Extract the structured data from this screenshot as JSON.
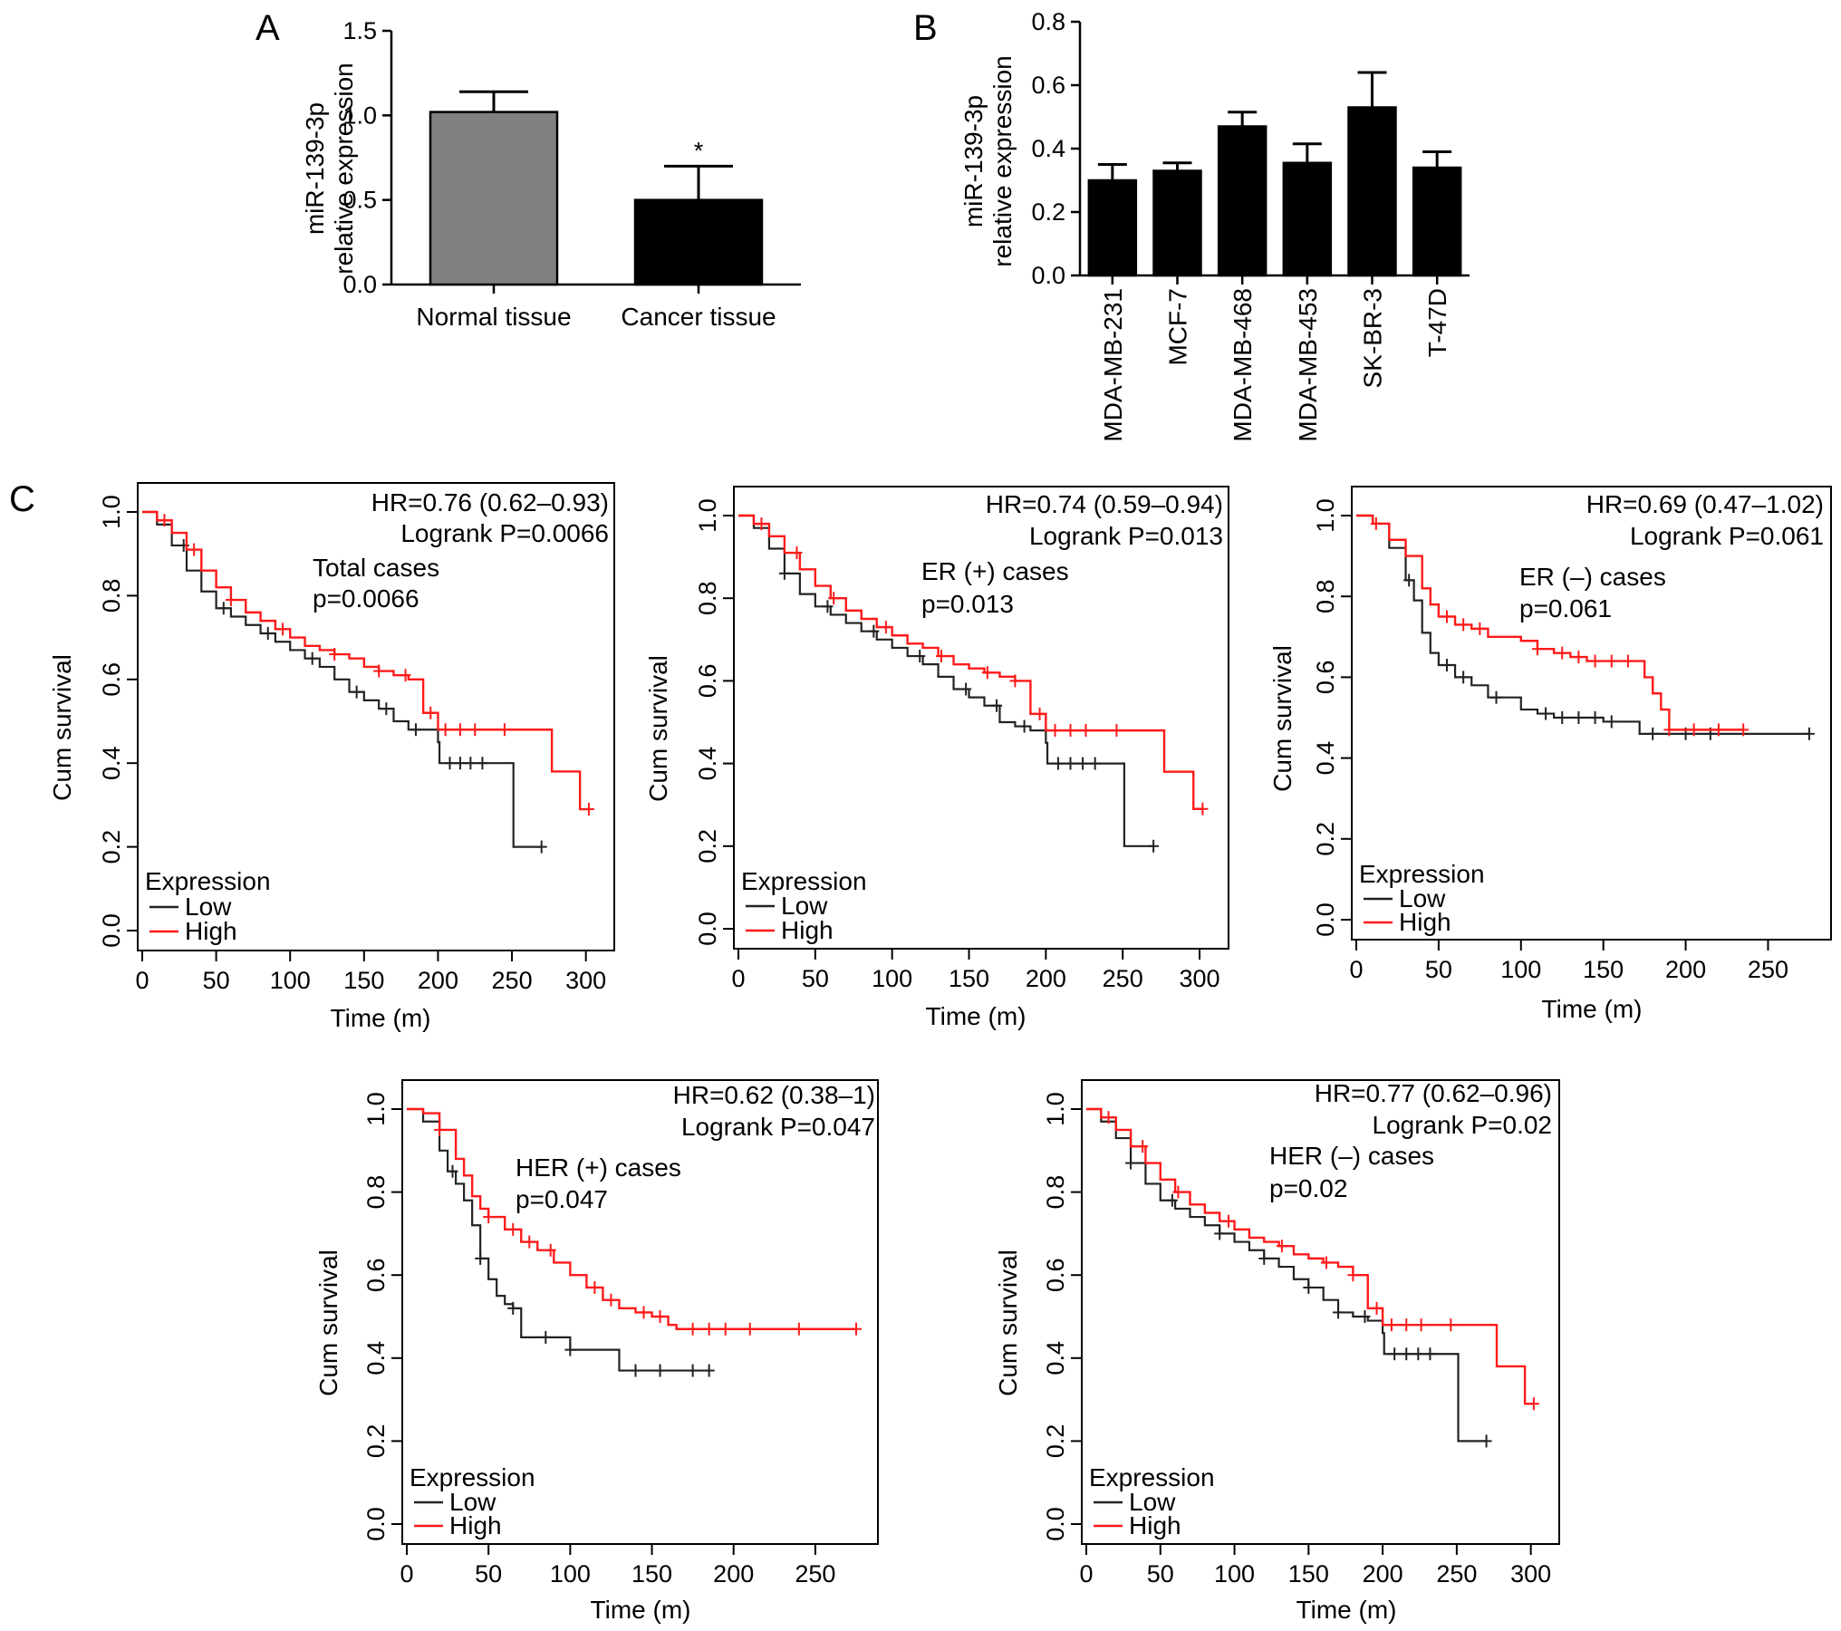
{
  "colors": {
    "low": "#222222",
    "high": "#ff1a1a",
    "normal_bar": "#808080",
    "bar": "#000000"
  },
  "panels": {
    "a": "A",
    "b": "B",
    "c": "C"
  },
  "chart_data": [
    {
      "type": "bar",
      "panel": "A",
      "ylabel": "miR-139-3p relative expression",
      "ylabel_lines": [
        "miR-139-3p",
        "relative expression"
      ],
      "categories": [
        "Normal tissue",
        "Cancer tissue"
      ],
      "values": [
        1.02,
        0.5
      ],
      "errors": [
        0.12,
        0.2
      ],
      "bar_colors": [
        "#808080",
        "#000000"
      ],
      "significance": [
        "",
        "*"
      ],
      "ylim": [
        0,
        1.5
      ],
      "yticks": [
        "0.0",
        "0.5",
        "1.0",
        "1.5"
      ]
    },
    {
      "type": "bar",
      "panel": "B",
      "ylabel": "miR-139-3p relative expression",
      "ylabel_lines": [
        "miR-139-3p",
        "relative expression"
      ],
      "categories": [
        "MDA-MB-231",
        "MCF-7",
        "MDA-MB-468",
        "MDA-MB-453",
        "SK-BR-3",
        "T-47D"
      ],
      "values": [
        0.3,
        0.33,
        0.47,
        0.355,
        0.53,
        0.34
      ],
      "errors": [
        0.05,
        0.025,
        0.045,
        0.06,
        0.11,
        0.05
      ],
      "ylim": [
        0,
        0.8
      ],
      "yticks": [
        "0.0",
        "0.2",
        "0.4",
        "0.6",
        "0.8"
      ]
    },
    {
      "type": "line",
      "subtype": "kaplan-meier",
      "panel": "C",
      "xlabel": "Time (m)",
      "ylabel": "Cum survival",
      "xlim": [
        0,
        310
      ],
      "ylim": [
        0,
        1.05
      ],
      "xticks": [
        "0",
        "50",
        "100",
        "150",
        "200",
        "250",
        "300"
      ],
      "yticks": [
        "0.0",
        "0.2",
        "0.4",
        "0.6",
        "0.8",
        "1.0"
      ],
      "hr": "HR=0.76 (0.62–0.93)",
      "logrank": "Logrank P=0.0066",
      "annotation": [
        "Total cases",
        "p=0.0066"
      ],
      "legend_title": "Expression",
      "series": [
        {
          "name": "Low",
          "color": "#222222",
          "x": [
            0,
            10,
            20,
            30,
            40,
            50,
            60,
            70,
            80,
            90,
            100,
            110,
            120,
            130,
            140,
            150,
            160,
            170,
            180,
            190,
            200,
            201,
            250,
            251,
            270
          ],
          "y": [
            1.0,
            0.97,
            0.92,
            0.86,
            0.81,
            0.77,
            0.75,
            0.73,
            0.71,
            0.69,
            0.67,
            0.65,
            0.63,
            0.6,
            0.57,
            0.55,
            0.53,
            0.5,
            0.48,
            0.48,
            0.45,
            0.4,
            0.4,
            0.2,
            0.2
          ],
          "censor_x": [
            28,
            55,
            85,
            115,
            145,
            165,
            185,
            208,
            215,
            222,
            230,
            270
          ]
        },
        {
          "name": "High",
          "color": "#ff1a1a",
          "x": [
            0,
            10,
            20,
            30,
            40,
            50,
            60,
            70,
            80,
            90,
            100,
            110,
            120,
            130,
            140,
            150,
            160,
            170,
            180,
            190,
            200,
            210,
            220,
            230,
            240,
            250,
            276,
            277,
            295,
            296,
            302
          ],
          "y": [
            1.0,
            0.98,
            0.95,
            0.91,
            0.86,
            0.82,
            0.79,
            0.76,
            0.74,
            0.72,
            0.7,
            0.68,
            0.67,
            0.66,
            0.65,
            0.63,
            0.62,
            0.61,
            0.6,
            0.52,
            0.48,
            0.48,
            0.48,
            0.48,
            0.48,
            0.48,
            0.48,
            0.38,
            0.38,
            0.29,
            0.29
          ],
          "censor_x": [
            15,
            35,
            60,
            95,
            130,
            160,
            178,
            195,
            205,
            215,
            225,
            245,
            302
          ]
        }
      ]
    },
    {
      "type": "line",
      "subtype": "kaplan-meier",
      "xlabel": "Time (m)",
      "ylabel": "Cum survival",
      "xlim": [
        0,
        310
      ],
      "ylim": [
        0,
        1.05
      ],
      "xticks": [
        "0",
        "50",
        "100",
        "150",
        "200",
        "250",
        "300"
      ],
      "yticks": [
        "0.0",
        "0.2",
        "0.4",
        "0.6",
        "0.8",
        "1.0"
      ],
      "hr": "HR=0.74 (0.59–0.94)",
      "logrank": "Logrank P=0.013",
      "annotation": [
        "ER (+) cases",
        "p=0.013"
      ],
      "legend_title": "Expression",
      "series": [
        {
          "name": "Low",
          "color": "#222222",
          "x": [
            0,
            10,
            20,
            30,
            40,
            50,
            60,
            70,
            80,
            90,
            100,
            110,
            120,
            130,
            140,
            150,
            160,
            170,
            180,
            190,
            200,
            201,
            250,
            251,
            270
          ],
          "y": [
            1.0,
            0.97,
            0.92,
            0.86,
            0.81,
            0.78,
            0.76,
            0.74,
            0.72,
            0.7,
            0.68,
            0.66,
            0.64,
            0.61,
            0.58,
            0.56,
            0.54,
            0.5,
            0.49,
            0.48,
            0.45,
            0.4,
            0.4,
            0.2,
            0.2
          ],
          "censor_x": [
            30,
            58,
            88,
            118,
            148,
            168,
            186,
            208,
            216,
            224,
            232,
            270
          ]
        },
        {
          "name": "High",
          "color": "#ff1a1a",
          "x": [
            0,
            10,
            20,
            30,
            40,
            50,
            60,
            70,
            80,
            90,
            100,
            110,
            120,
            130,
            140,
            150,
            160,
            170,
            180,
            190,
            200,
            210,
            220,
            230,
            240,
            250,
            276,
            277,
            295,
            296,
            302
          ],
          "y": [
            1.0,
            0.98,
            0.95,
            0.91,
            0.87,
            0.83,
            0.8,
            0.77,
            0.75,
            0.73,
            0.71,
            0.69,
            0.68,
            0.66,
            0.64,
            0.63,
            0.62,
            0.61,
            0.6,
            0.52,
            0.48,
            0.48,
            0.48,
            0.48,
            0.48,
            0.48,
            0.48,
            0.38,
            0.38,
            0.29,
            0.29
          ],
          "censor_x": [
            15,
            38,
            62,
            96,
            132,
            162,
            180,
            196,
            206,
            216,
            226,
            246,
            302
          ]
        }
      ]
    },
    {
      "type": "line",
      "subtype": "kaplan-meier",
      "xlabel": "Time (m)",
      "ylabel": "Cum survival",
      "xlim": [
        0,
        280
      ],
      "ylim": [
        0,
        1.05
      ],
      "xticks": [
        "0",
        "50",
        "100",
        "150",
        "200",
        "250"
      ],
      "yticks": [
        "0.0",
        "0.2",
        "0.4",
        "0.6",
        "0.8",
        "1.0"
      ],
      "hr": "HR=0.69 (0.47–1.02)",
      "logrank": "Logrank P=0.061",
      "annotation": [
        "ER (–) cases",
        "p=0.061"
      ],
      "legend_title": "Expression",
      "series": [
        {
          "name": "Low",
          "color": "#222222",
          "x": [
            0,
            10,
            20,
            30,
            35,
            40,
            45,
            50,
            60,
            70,
            80,
            90,
            100,
            110,
            120,
            150,
            170,
            172,
            200,
            240,
            275
          ],
          "y": [
            1.0,
            0.98,
            0.92,
            0.84,
            0.79,
            0.71,
            0.66,
            0.63,
            0.6,
            0.58,
            0.55,
            0.55,
            0.52,
            0.51,
            0.5,
            0.49,
            0.49,
            0.46,
            0.46,
            0.46,
            0.46
          ],
          "censor_x": [
            32,
            55,
            65,
            85,
            115,
            125,
            135,
            145,
            155,
            180,
            200,
            215,
            275
          ]
        },
        {
          "name": "High",
          "color": "#ff1a1a",
          "x": [
            0,
            10,
            20,
            30,
            40,
            45,
            50,
            60,
            70,
            80,
            90,
            100,
            110,
            120,
            130,
            140,
            150,
            160,
            170,
            175,
            180,
            185,
            190,
            200,
            210,
            235
          ],
          "y": [
            1.0,
            0.98,
            0.94,
            0.9,
            0.82,
            0.78,
            0.75,
            0.73,
            0.72,
            0.7,
            0.7,
            0.69,
            0.67,
            0.66,
            0.65,
            0.64,
            0.64,
            0.64,
            0.64,
            0.6,
            0.56,
            0.52,
            0.47,
            0.47,
            0.47,
            0.47
          ],
          "censor_x": [
            12,
            55,
            65,
            75,
            110,
            125,
            135,
            145,
            155,
            165,
            190,
            205,
            220,
            235
          ]
        }
      ]
    },
    {
      "type": "line",
      "subtype": "kaplan-meier",
      "xlabel": "Time (m)",
      "ylabel": "Cum survival",
      "xlim": [
        0,
        280
      ],
      "ylim": [
        0,
        1.05
      ],
      "xticks": [
        "0",
        "50",
        "100",
        "150",
        "200",
        "250"
      ],
      "yticks": [
        "0.0",
        "0.2",
        "0.4",
        "0.6",
        "0.8",
        "1.0"
      ],
      "hr": "HR=0.62 (0.38–1)",
      "logrank": "Logrank P=0.047",
      "annotation": [
        "HER (+) cases",
        "p=0.047"
      ],
      "legend_title": "Expression",
      "series": [
        {
          "name": "Low",
          "color": "#222222",
          "x": [
            0,
            10,
            20,
            25,
            30,
            35,
            40,
            45,
            50,
            55,
            60,
            65,
            70,
            80,
            90,
            100,
            110,
            120,
            130,
            140,
            160,
            185
          ],
          "y": [
            1.0,
            0.97,
            0.9,
            0.85,
            0.82,
            0.78,
            0.72,
            0.64,
            0.59,
            0.55,
            0.53,
            0.52,
            0.45,
            0.45,
            0.45,
            0.42,
            0.42,
            0.42,
            0.37,
            0.37,
            0.37,
            0.37
          ],
          "censor_x": [
            28,
            45,
            65,
            85,
            100,
            140,
            155,
            175,
            185
          ]
        },
        {
          "name": "High",
          "color": "#ff1a1a",
          "x": [
            0,
            10,
            20,
            30,
            35,
            40,
            45,
            50,
            60,
            70,
            80,
            90,
            100,
            110,
            120,
            130,
            140,
            150,
            160,
            165,
            170,
            200,
            240,
            275
          ],
          "y": [
            1.0,
            0.99,
            0.95,
            0.88,
            0.84,
            0.79,
            0.76,
            0.74,
            0.71,
            0.68,
            0.66,
            0.63,
            0.6,
            0.57,
            0.54,
            0.52,
            0.51,
            0.5,
            0.48,
            0.47,
            0.47,
            0.47,
            0.47,
            0.47
          ],
          "censor_x": [
            20,
            50,
            65,
            75,
            88,
            115,
            125,
            145,
            155,
            175,
            185,
            195,
            210,
            240,
            275
          ]
        }
      ]
    },
    {
      "type": "line",
      "subtype": "kaplan-meier",
      "xlabel": "Time (m)",
      "ylabel": "Cum survival",
      "xlim": [
        0,
        310
      ],
      "ylim": [
        0,
        1.05
      ],
      "xticks": [
        "0",
        "50",
        "100",
        "150",
        "200",
        "250",
        "300"
      ],
      "yticks": [
        "0.0",
        "0.2",
        "0.4",
        "0.6",
        "0.8",
        "1.0"
      ],
      "hr": "HR=0.77 (0.62–0.96)",
      "logrank": "Logrank P=0.02",
      "annotation": [
        "HER (–) cases",
        "p=0.02"
      ],
      "legend_title": "Expression",
      "series": [
        {
          "name": "Low",
          "color": "#222222",
          "x": [
            0,
            10,
            20,
            30,
            40,
            50,
            60,
            70,
            80,
            90,
            100,
            110,
            120,
            130,
            140,
            150,
            160,
            170,
            180,
            190,
            200,
            201,
            250,
            251,
            270
          ],
          "y": [
            1.0,
            0.97,
            0.93,
            0.87,
            0.82,
            0.78,
            0.76,
            0.74,
            0.72,
            0.7,
            0.68,
            0.66,
            0.64,
            0.62,
            0.59,
            0.57,
            0.54,
            0.51,
            0.5,
            0.49,
            0.46,
            0.41,
            0.41,
            0.2,
            0.2
          ],
          "censor_x": [
            30,
            58,
            90,
            120,
            150,
            170,
            188,
            208,
            216,
            224,
            232,
            270
          ]
        },
        {
          "name": "High",
          "color": "#ff1a1a",
          "x": [
            0,
            10,
            20,
            30,
            40,
            50,
            60,
            70,
            80,
            90,
            100,
            110,
            120,
            130,
            140,
            150,
            160,
            170,
            180,
            190,
            200,
            210,
            220,
            230,
            240,
            250,
            276,
            277,
            295,
            296,
            302
          ],
          "y": [
            1.0,
            0.98,
            0.95,
            0.91,
            0.87,
            0.83,
            0.8,
            0.77,
            0.75,
            0.73,
            0.71,
            0.69,
            0.68,
            0.67,
            0.65,
            0.64,
            0.63,
            0.62,
            0.6,
            0.52,
            0.48,
            0.48,
            0.48,
            0.48,
            0.48,
            0.48,
            0.48,
            0.38,
            0.38,
            0.29,
            0.29
          ],
          "censor_x": [
            15,
            38,
            62,
            96,
            132,
            162,
            180,
            196,
            206,
            216,
            226,
            246,
            302
          ]
        }
      ]
    }
  ]
}
